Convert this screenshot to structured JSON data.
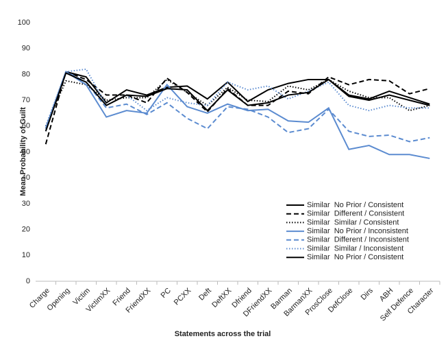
{
  "chart_data": {
    "type": "line",
    "x_label": "Statements across the trial",
    "y_label": "Mean Probability of Guilt",
    "categories": [
      "Charge",
      "Opening",
      "Victim",
      "VictimXX",
      "Friend",
      "FriendXX",
      "PC",
      "PCXX",
      "Deft",
      "DeftXX",
      "Dfriend",
      "DFriendXX",
      "Barman",
      "BarmanXX",
      "ProsClose",
      "DefClose",
      "Dirs",
      "ABH",
      "Self Defence",
      "Character"
    ],
    "ylim": [
      0,
      100
    ],
    "yticks": [
      0,
      10,
      20,
      30,
      40,
      50,
      60,
      70,
      80,
      90,
      100
    ],
    "grid": false,
    "legend": "right",
    "series": [
      {
        "name": "Similar  No Prior / Consistent",
        "color": "#000000",
        "dash": "solid",
        "values": [
          59,
          81,
          79,
          69,
          74,
          72,
          75,
          75.5,
          70.5,
          77,
          69.5,
          74,
          76.5,
          78,
          78,
          72,
          70.5,
          73.5,
          71,
          68.5
        ]
      },
      {
        "name": "Similar  Different / Consistent",
        "color": "#000000",
        "dash": "dashed",
        "values": [
          53,
          81,
          78,
          72,
          72,
          69,
          78.5,
          73,
          65.5,
          74.5,
          68,
          68,
          73.5,
          72.5,
          79,
          76,
          78,
          77.5,
          72.5,
          74.5
        ]
      },
      {
        "name": "Similar  Similar / Consistent",
        "color": "#000000",
        "dash": "dotted",
        "values": [
          60,
          77.5,
          76,
          70,
          71,
          71,
          78,
          73,
          68,
          75,
          70,
          69.5,
          75.5,
          74,
          78,
          73.5,
          71,
          71,
          66,
          68
        ]
      },
      {
        "name": "Similar  No Prior / Inconsistent",
        "color": "#5b8bd0",
        "dash": "solid",
        "values": [
          59,
          81,
          76,
          63.5,
          66,
          65,
          76,
          67.5,
          65,
          68.5,
          66,
          66.5,
          62,
          61.5,
          67,
          51,
          52.5,
          49,
          49,
          47.5
        ]
      },
      {
        "name": "Similar  Different / Inconsistent",
        "color": "#5b8bd0",
        "dash": "dashed",
        "values": [
          58,
          81,
          77,
          67,
          68.5,
          64.5,
          69,
          63,
          59,
          67.5,
          66.5,
          63.5,
          57.5,
          59,
          66.5,
          58,
          56,
          56.5,
          54,
          55.5
        ]
      },
      {
        "name": "Similar  Similar / Inconsistent",
        "color": "#5b8bd0",
        "dash": "dotted",
        "values": [
          60,
          81,
          82,
          68,
          72,
          66,
          71,
          69,
          68,
          77,
          74,
          75.5,
          70.5,
          73.5,
          77,
          68,
          66,
          68,
          67,
          67
        ]
      },
      {
        "name": "Similar  No Prior / Consistent",
        "color": "#000000",
        "dash": "solid",
        "values": [
          58,
          80.5,
          77,
          68,
          72,
          71.5,
          74.5,
          74,
          66,
          74,
          68,
          69,
          72,
          73,
          78,
          71.5,
          70,
          72,
          70,
          68
        ]
      }
    ]
  }
}
